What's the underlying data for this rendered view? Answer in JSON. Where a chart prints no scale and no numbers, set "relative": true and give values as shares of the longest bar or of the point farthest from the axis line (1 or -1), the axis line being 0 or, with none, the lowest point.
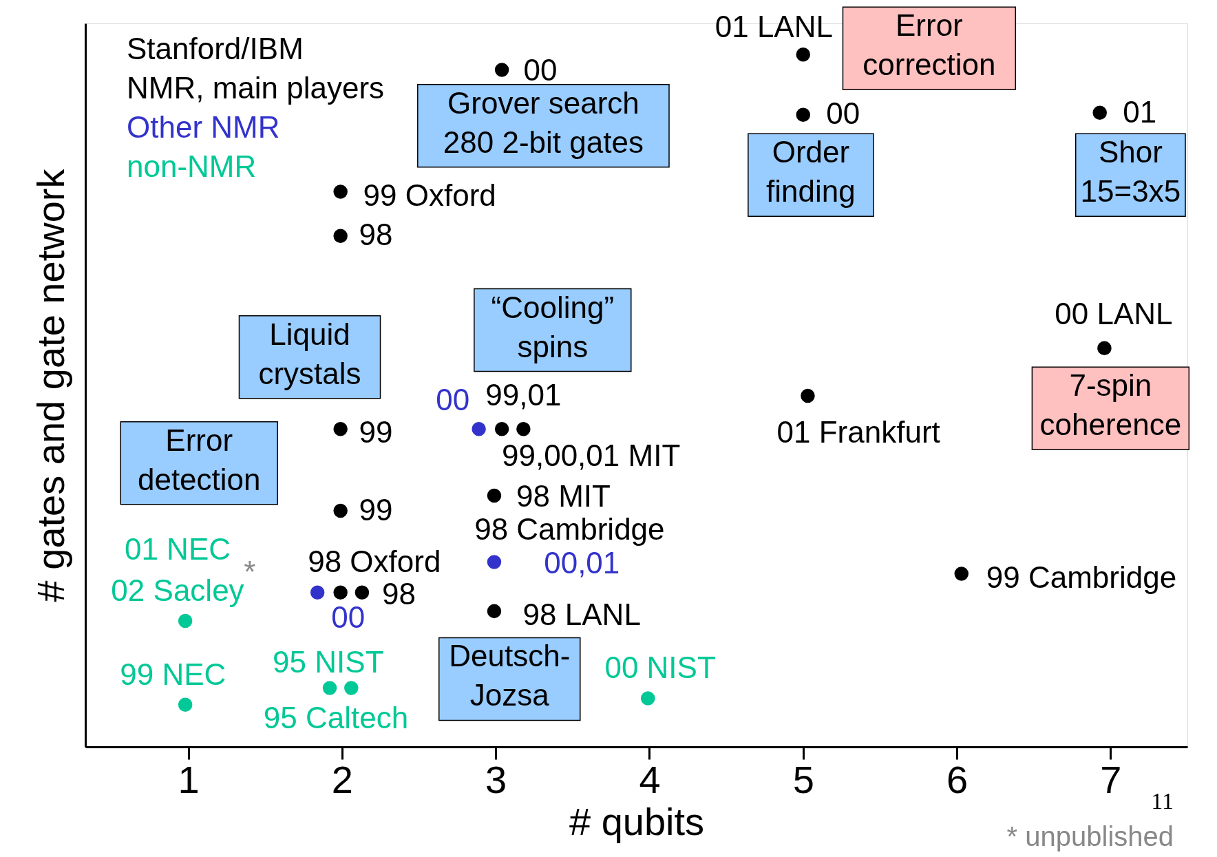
{
  "chart_data": {
    "type": "scatter",
    "relative": true,
    "xlabel": "# qubits",
    "ylabel": "# gates and gate network",
    "xlim": [
      0.33,
      7.5
    ],
    "xticks": [
      1,
      2,
      3,
      4,
      5,
      6,
      7
    ],
    "grid": false,
    "marker": "circle",
    "series": [
      {
        "name": "Stanford/IBM\nNMR, main players",
        "color": "#000000",
        "x": [
          5.0,
          3.04,
          5.0,
          6.93,
          1.99,
          1.99,
          6.96,
          5.03,
          1.99,
          3.04,
          3.18,
          1.99,
          2.99,
          6.03,
          1.99,
          2.13,
          2.99
        ],
        "values": [
          1.0,
          0.978,
          0.913,
          0.916,
          0.802,
          0.738,
          0.576,
          0.507,
          0.459,
          0.459,
          0.459,
          0.341,
          0.363,
          0.25,
          0.223,
          0.223,
          0.196
        ]
      },
      {
        "name": "Other NMR",
        "color": "#3333cc",
        "x": [
          2.89,
          2.99,
          1.84
        ],
        "values": [
          0.459,
          0.267,
          0.223
        ]
      },
      {
        "name": "non-NMR",
        "color": "#00c896",
        "x": [
          0.98,
          0.98,
          1.92,
          2.06,
          3.99
        ],
        "values": [
          0.182,
          0.061,
          0.085,
          0.085,
          0.07
        ]
      }
    ],
    "annotations": [
      "01 LANL",
      "00",
      "Grover search\n280 2-bit gates",
      "Error\ncorrection",
      "00",
      "01",
      "Order\nfinding",
      "Shor\n15=3x5",
      "99 Oxford",
      "98",
      "Liquid\ncrystals",
      "“Cooling”\nspins",
      "00 LANL",
      "7-spin\ncoherence",
      "00",
      "99,01",
      "99",
      "99,00,01 MIT",
      "01 Frankfurt",
      "Error\ndetection",
      "99",
      "98 MIT",
      "98 Cambridge",
      "01 NEC",
      "02 Sacley",
      "*",
      "98 Oxford",
      "00,01",
      "99 Cambridge",
      "98",
      "00",
      "98 LANL",
      "Deutsch-\nJozsa",
      "95 NIST",
      "99 NEC",
      "00 NIST",
      "95 Caltech",
      "11",
      "* unpublished"
    ]
  }
}
